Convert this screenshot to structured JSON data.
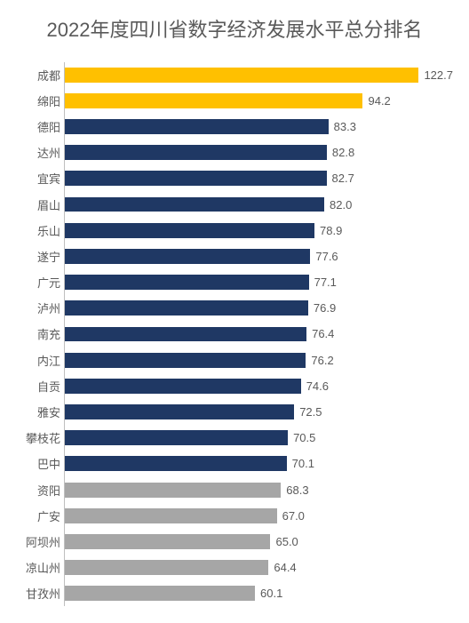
{
  "chart": {
    "type": "bar-horizontal",
    "title": "2022年度四川省数字经济发展水平总分排名",
    "title_fontsize": 22,
    "title_color": "#595959",
    "label_fontsize": 13,
    "value_fontsize": 13,
    "label_color": "#595959",
    "value_color": "#595959",
    "background_color": "#ffffff",
    "axis_color": "#bfbfbf",
    "bar_height_ratio": 0.58,
    "xlim": [
      0,
      122.7
    ],
    "colors": {
      "gold": "#ffc000",
      "navy": "#1f3864",
      "gray": "#a6a6a6"
    },
    "data": [
      {
        "name": "成都",
        "value": 122.7,
        "color": "#ffc000"
      },
      {
        "name": "绵阳",
        "value": 94.2,
        "color": "#ffc000"
      },
      {
        "name": "德阳",
        "value": 83.3,
        "color": "#1f3864"
      },
      {
        "name": "达州",
        "value": 82.8,
        "color": "#1f3864"
      },
      {
        "name": "宜宾",
        "value": 82.7,
        "color": "#1f3864"
      },
      {
        "name": "眉山",
        "value": 82.0,
        "color": "#1f3864"
      },
      {
        "name": "乐山",
        "value": 78.9,
        "color": "#1f3864"
      },
      {
        "name": "遂宁",
        "value": 77.6,
        "color": "#1f3864"
      },
      {
        "name": "广元",
        "value": 77.1,
        "color": "#1f3864"
      },
      {
        "name": "泸州",
        "value": 76.9,
        "color": "#1f3864"
      },
      {
        "name": "南充",
        "value": 76.4,
        "color": "#1f3864"
      },
      {
        "name": "内江",
        "value": 76.2,
        "color": "#1f3864"
      },
      {
        "name": "自贡",
        "value": 74.6,
        "color": "#1f3864"
      },
      {
        "name": "雅安",
        "value": 72.5,
        "color": "#1f3864"
      },
      {
        "name": "攀枝花",
        "value": 70.5,
        "color": "#1f3864"
      },
      {
        "name": "巴中",
        "value": 70.1,
        "color": "#1f3864"
      },
      {
        "name": "资阳",
        "value": 68.3,
        "color": "#a6a6a6"
      },
      {
        "name": "广安",
        "value": 67.0,
        "color": "#a6a6a6"
      },
      {
        "name": "阿坝州",
        "value": 65.0,
        "color": "#a6a6a6"
      },
      {
        "name": "凉山州",
        "value": 64.4,
        "color": "#a6a6a6"
      },
      {
        "name": "甘孜州",
        "value": 60.1,
        "color": "#a6a6a6"
      }
    ]
  }
}
